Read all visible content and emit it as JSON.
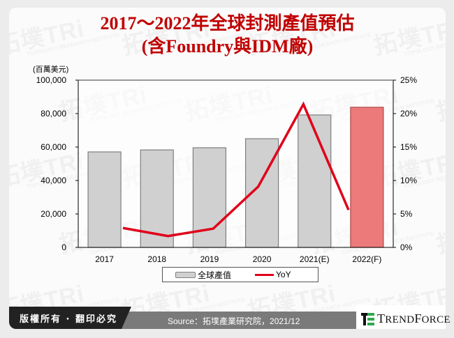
{
  "title": {
    "line1": "2017～2022年全球封測產值預估",
    "line2": "(含Foundry與IDM廠)",
    "color": "#c00000"
  },
  "watermark": {
    "text": "拓墣TRi",
    "subtext": "TOPOLOGY RESEARCH INSTITUTE"
  },
  "chart_data": {
    "type": "bar",
    "title": "2017～2022年全球封測產值預估 (含Foundry與IDM廠)",
    "unit_label": "(百萬美元)",
    "categories": [
      "2017",
      "2018",
      "2019",
      "2020",
      "2021(E)",
      "2022(F)"
    ],
    "series": [
      {
        "name": "全球產值",
        "type": "bar",
        "axis": "left",
        "values": [
          57100,
          58300,
          59600,
          65000,
          79200,
          83800
        ],
        "color": "#d0d0d0",
        "highlight_color": "#ec7a7a",
        "highlight_index": 5
      },
      {
        "name": "YoY",
        "type": "line",
        "axis": "right",
        "values": [
          2.9,
          1.7,
          2.8,
          9.1,
          21.4,
          5.6
        ],
        "unit": "%",
        "color": "#e0001b"
      }
    ],
    "y_left": {
      "ticks": [
        "0",
        "20,000",
        "40,000",
        "60,000",
        "80,000",
        "100,000"
      ],
      "ylim": [
        0,
        100000
      ]
    },
    "y_right": {
      "ticks": [
        "0%",
        "5%",
        "10%",
        "15%",
        "20%",
        "25%"
      ],
      "ylim": [
        0,
        25
      ]
    },
    "grid": false,
    "legend_position": "bottom"
  },
  "legend": {
    "bar_label": "全球產值",
    "line_label": "YoY"
  },
  "footer": {
    "copyright": "版權所有 · 翻印必究",
    "source": "Source：拓墣產業研究院，2021/12",
    "logo_text_t": "T",
    "logo_text_rend": "REND",
    "logo_text_f": "F",
    "logo_text_orce": "ORCE"
  }
}
